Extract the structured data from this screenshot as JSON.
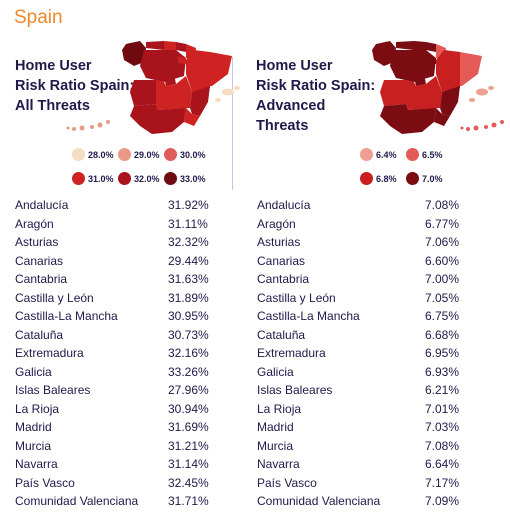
{
  "page_title": "Spain",
  "colors": {
    "title_orange": "#f0882a",
    "text_navy": "#1e1a4a",
    "divider": "#c9c3e6"
  },
  "left_panel": {
    "heading_line1": "Home User",
    "heading_line2": "Risk Ratio Spain:",
    "heading_line3": "All Threats",
    "legend": [
      {
        "label": "28.0%",
        "color": "#f6dcc3"
      },
      {
        "label": "29.0%",
        "color": "#e99a87"
      },
      {
        "label": "30.0%",
        "color": "#e05c5a"
      },
      {
        "label": "31.0%",
        "color": "#cf2323"
      },
      {
        "label": "32.0%",
        "color": "#a8131c"
      },
      {
        "label": "33.0%",
        "color": "#6e0a10"
      }
    ],
    "rows": [
      {
        "region": "Andalucía",
        "value": "31.92%"
      },
      {
        "region": "Aragón",
        "value": "31.11%"
      },
      {
        "region": "Asturias",
        "value": "32.32%"
      },
      {
        "region": "Canarias",
        "value": "29.44%"
      },
      {
        "region": "Cantabria",
        "value": "31.63%"
      },
      {
        "region": "Castilla y León",
        "value": "31.89%"
      },
      {
        "region": "Castilla-La Mancha",
        "value": "30.95%"
      },
      {
        "region": "Cataluña",
        "value": "30.73%"
      },
      {
        "region": "Extremadura",
        "value": "32.16%"
      },
      {
        "region": "Galicia",
        "value": "33.26%"
      },
      {
        "region": "Islas Baleares",
        "value": "27.96%"
      },
      {
        "region": "La Rioja",
        "value": "30.94%"
      },
      {
        "region": "Madrid",
        "value": "31.69%"
      },
      {
        "region": "Murcia",
        "value": "31.21%"
      },
      {
        "region": "Navarra",
        "value": "31.14%"
      },
      {
        "region": "País Vasco",
        "value": "32.45%"
      },
      {
        "region": "Comunidad Valenciana",
        "value": "31.71%"
      }
    ]
  },
  "right_panel": {
    "heading_line1": "Home User",
    "heading_line2": "Risk Ratio Spain:",
    "heading_line3": "Advanced",
    "heading_line4": "Threats",
    "legend": [
      {
        "label": "6.4%",
        "color": "#ef9f91"
      },
      {
        "label": "6.5%",
        "color": "#e35a57"
      },
      {
        "label": "6.8%",
        "color": "#c82020"
      },
      {
        "label": "7.0%",
        "color": "#7a0c12"
      }
    ],
    "rows": [
      {
        "region": "Andalucía",
        "value": "7.08%"
      },
      {
        "region": "Aragón",
        "value": "6.77%"
      },
      {
        "region": "Asturias",
        "value": "7.06%"
      },
      {
        "region": "Canarias",
        "value": "6.60%"
      },
      {
        "region": "Cantabria",
        "value": "7.00%"
      },
      {
        "region": "Castilla y León",
        "value": "7.05%"
      },
      {
        "region": "Castilla-La Mancha",
        "value": "6.75%"
      },
      {
        "region": "Cataluña",
        "value": "6.68%"
      },
      {
        "region": "Extremadura",
        "value": "6.95%"
      },
      {
        "region": "Galicia",
        "value": "6.93%"
      },
      {
        "region": "Islas Baleares",
        "value": "6.21%"
      },
      {
        "region": "La Rioja",
        "value": "7.01%"
      },
      {
        "region": "Madrid",
        "value": "7.03%"
      },
      {
        "region": "Murcia",
        "value": "7.08%"
      },
      {
        "region": "Navarra",
        "value": "6.64%"
      },
      {
        "region": "País Vasco",
        "value": "7.17%"
      },
      {
        "region": "Comunidad Valenciana",
        "value": "7.09%"
      }
    ]
  }
}
